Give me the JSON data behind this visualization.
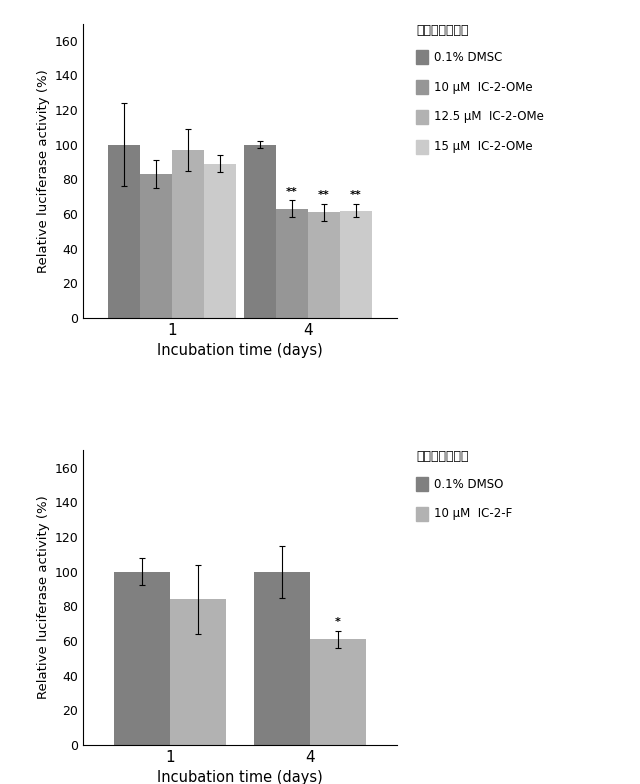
{
  "chart1": {
    "ylabel": "Relative luciferase activity (%)",
    "xlabel": "Incubation time (days)",
    "xtick_labels": [
      "1",
      "4"
    ],
    "ylim": [
      0,
      170
    ],
    "yticks": [
      0,
      20,
      40,
      60,
      80,
      100,
      120,
      140,
      160
    ],
    "series_labels": [
      "0.1% DMSC",
      "10 μM  IC-2-OMe",
      "12.5 μM  IC-2-OMe",
      "15 μM  IC-2-OMe"
    ],
    "colors": [
      "#808080",
      "#969696",
      "#b2b2b2",
      "#cbcbcb"
    ],
    "values": [
      [
        100,
        83,
        97,
        89
      ],
      [
        100,
        63,
        61,
        62
      ]
    ],
    "errors": [
      [
        24,
        8,
        12,
        5
      ],
      [
        2,
        5,
        5,
        4
      ]
    ],
    "significance": [
      null,
      [
        null,
        "**",
        "**",
        "**"
      ]
    ],
    "legend_title": "（左から順に）",
    "bar_width": 0.13,
    "group_centers": [
      0.27,
      0.82
    ]
  },
  "chart2": {
    "ylabel": "Relative luciferase activity (%)",
    "xlabel": "Incubation time (days)",
    "xtick_labels": [
      "1",
      "4"
    ],
    "ylim": [
      0,
      170
    ],
    "yticks": [
      0,
      20,
      40,
      60,
      80,
      100,
      120,
      140,
      160
    ],
    "series_labels": [
      "0.1% DMSO",
      "10 μM  IC-2-F"
    ],
    "colors": [
      "#808080",
      "#b2b2b2"
    ],
    "values": [
      [
        100,
        84
      ],
      [
        100,
        61
      ]
    ],
    "errors": [
      [
        8,
        20
      ],
      [
        15,
        5
      ]
    ],
    "significance": [
      null,
      [
        null,
        "*"
      ]
    ],
    "legend_title": "（左から順に）",
    "bar_width": 0.18,
    "group_centers": [
      0.27,
      0.72
    ]
  },
  "background_color": "#ffffff",
  "fig_width": 6.4,
  "fig_height": 7.84,
  "dpi": 100
}
